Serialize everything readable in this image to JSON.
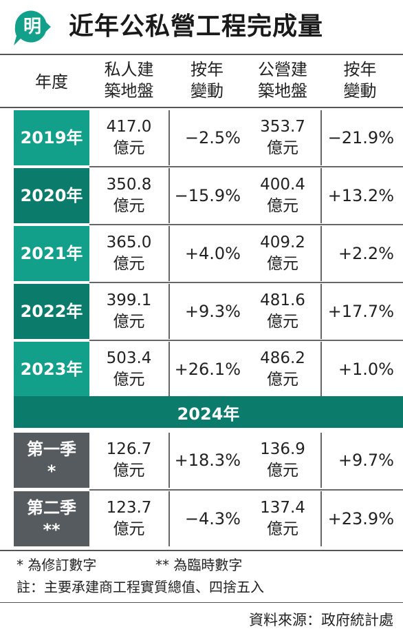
{
  "header": {
    "logo_char": "明",
    "title": "近年公私營工程完成量"
  },
  "columns": {
    "year": "年度",
    "private_line1": "私人建",
    "private_line2": "築地盤",
    "yoy1_line1": "按年",
    "yoy1_line2": "變動",
    "public_line1": "公營建",
    "public_line2": "築地盤",
    "yoy2_line1": "按年",
    "yoy2_line2": "變動"
  },
  "unit": "億元",
  "rows": [
    {
      "label": "2019年",
      "private": "417.0",
      "private_change": "−2.5%",
      "public": "353.7",
      "public_change": "−21.9%"
    },
    {
      "label": "2020年",
      "private": "350.8",
      "private_change": "−15.9%",
      "public": "400.4",
      "public_change": "+13.2%"
    },
    {
      "label": "2021年",
      "private": "365.0",
      "private_change": "+4.0%",
      "public": "409.2",
      "public_change": "+2.2%"
    },
    {
      "label": "2022年",
      "private": "399.1",
      "private_change": "+9.3%",
      "public": "481.6",
      "public_change": "+17.7%"
    },
    {
      "label": "2023年",
      "private": "503.4",
      "private_change": "+26.1%",
      "public": "486.2",
      "public_change": "+1.0%"
    }
  ],
  "band_2024": "2024年",
  "quarters": [
    {
      "label_line1": "第一季",
      "label_line2": "*",
      "private": "126.7",
      "private_change": "+18.3%",
      "public": "136.9",
      "public_change": "+9.7%"
    },
    {
      "label_line1": "第二季",
      "label_line2": "**",
      "private": "123.7",
      "private_change": "−4.3%",
      "public": "137.4",
      "public_change": "+23.9%"
    }
  ],
  "notes": {
    "revised": "* 為修訂數字",
    "provisional": "** 為臨時數字",
    "footnote": "註：主要承建商工程實質總值、四捨五入"
  },
  "source": "資料來源：政府統計處",
  "colors": {
    "teal_light": "#13a08a",
    "teal_dark": "#0b7b6b",
    "band": "#0b7b6b",
    "quarter": "#555b5e"
  }
}
